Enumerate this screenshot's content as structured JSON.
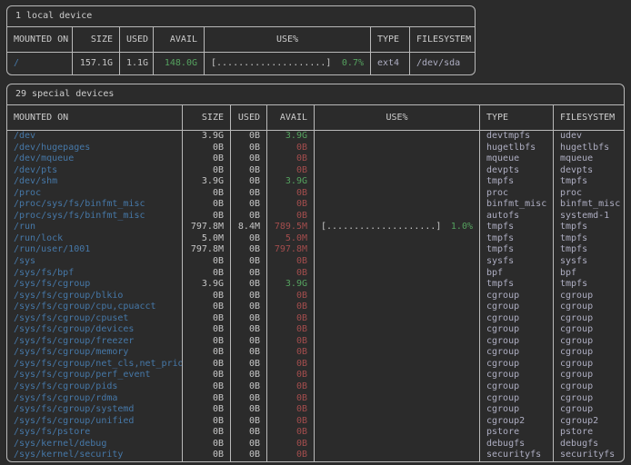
{
  "colors": {
    "background": "#2b2b2b",
    "border": "#b9b9b9",
    "text": "#c6c6c6",
    "mount_blue": "#4678a8",
    "avail_green": "#55a25f",
    "avail_red": "#a34d4d",
    "type_lavender": "#aeaec2"
  },
  "tables": [
    {
      "title": "1 local device",
      "headers": [
        "MOUNTED ON",
        "SIZE",
        "USED",
        "AVAIL",
        "USE%",
        "TYPE",
        "FILESYSTEM"
      ],
      "rows": [
        {
          "mounted_on": "/",
          "size": "157.1G",
          "used": "1.1G",
          "avail": "148.0G",
          "avail_state": "green",
          "use_bar": "[....................]",
          "use_pct": "0.7%",
          "type": "ext4",
          "filesystem": "/dev/sda"
        }
      ]
    },
    {
      "title": "29 special devices",
      "headers": [
        "MOUNTED ON",
        "SIZE",
        "USED",
        "AVAIL",
        "USE%",
        "TYPE",
        "FILESYSTEM"
      ],
      "rows": [
        {
          "mounted_on": "/dev",
          "size": "3.9G",
          "used": "0B",
          "avail": "3.9G",
          "avail_state": "green",
          "use_bar": "",
          "use_pct": "",
          "type": "devtmpfs",
          "filesystem": "udev"
        },
        {
          "mounted_on": "/dev/hugepages",
          "size": "0B",
          "used": "0B",
          "avail": "0B",
          "avail_state": "red",
          "use_bar": "",
          "use_pct": "",
          "type": "hugetlbfs",
          "filesystem": "hugetlbfs"
        },
        {
          "mounted_on": "/dev/mqueue",
          "size": "0B",
          "used": "0B",
          "avail": "0B",
          "avail_state": "red",
          "use_bar": "",
          "use_pct": "",
          "type": "mqueue",
          "filesystem": "mqueue"
        },
        {
          "mounted_on": "/dev/pts",
          "size": "0B",
          "used": "0B",
          "avail": "0B",
          "avail_state": "red",
          "use_bar": "",
          "use_pct": "",
          "type": "devpts",
          "filesystem": "devpts"
        },
        {
          "mounted_on": "/dev/shm",
          "size": "3.9G",
          "used": "0B",
          "avail": "3.9G",
          "avail_state": "green",
          "use_bar": "",
          "use_pct": "",
          "type": "tmpfs",
          "filesystem": "tmpfs"
        },
        {
          "mounted_on": "/proc",
          "size": "0B",
          "used": "0B",
          "avail": "0B",
          "avail_state": "red",
          "use_bar": "",
          "use_pct": "",
          "type": "proc",
          "filesystem": "proc"
        },
        {
          "mounted_on": "/proc/sys/fs/binfmt_misc",
          "size": "0B",
          "used": "0B",
          "avail": "0B",
          "avail_state": "red",
          "use_bar": "",
          "use_pct": "",
          "type": "binfmt_misc",
          "filesystem": "binfmt_misc"
        },
        {
          "mounted_on": "/proc/sys/fs/binfmt_misc",
          "size": "0B",
          "used": "0B",
          "avail": "0B",
          "avail_state": "red",
          "use_bar": "",
          "use_pct": "",
          "type": "autofs",
          "filesystem": "systemd-1"
        },
        {
          "mounted_on": "/run",
          "size": "797.8M",
          "used": "8.4M",
          "avail": "789.5M",
          "avail_state": "red",
          "use_bar": "[....................]",
          "use_pct": "1.0%",
          "type": "tmpfs",
          "filesystem": "tmpfs"
        },
        {
          "mounted_on": "/run/lock",
          "size": "5.0M",
          "used": "0B",
          "avail": "5.0M",
          "avail_state": "red",
          "use_bar": "",
          "use_pct": "",
          "type": "tmpfs",
          "filesystem": "tmpfs"
        },
        {
          "mounted_on": "/run/user/1001",
          "size": "797.8M",
          "used": "0B",
          "avail": "797.8M",
          "avail_state": "red",
          "use_bar": "",
          "use_pct": "",
          "type": "tmpfs",
          "filesystem": "tmpfs"
        },
        {
          "mounted_on": "/sys",
          "size": "0B",
          "used": "0B",
          "avail": "0B",
          "avail_state": "red",
          "use_bar": "",
          "use_pct": "",
          "type": "sysfs",
          "filesystem": "sysfs"
        },
        {
          "mounted_on": "/sys/fs/bpf",
          "size": "0B",
          "used": "0B",
          "avail": "0B",
          "avail_state": "red",
          "use_bar": "",
          "use_pct": "",
          "type": "bpf",
          "filesystem": "bpf"
        },
        {
          "mounted_on": "/sys/fs/cgroup",
          "size": "3.9G",
          "used": "0B",
          "avail": "3.9G",
          "avail_state": "green",
          "use_bar": "",
          "use_pct": "",
          "type": "tmpfs",
          "filesystem": "tmpfs"
        },
        {
          "mounted_on": "/sys/fs/cgroup/blkio",
          "size": "0B",
          "used": "0B",
          "avail": "0B",
          "avail_state": "red",
          "use_bar": "",
          "use_pct": "",
          "type": "cgroup",
          "filesystem": "cgroup"
        },
        {
          "mounted_on": "/sys/fs/cgroup/cpu,cpuacct",
          "size": "0B",
          "used": "0B",
          "avail": "0B",
          "avail_state": "red",
          "use_bar": "",
          "use_pct": "",
          "type": "cgroup",
          "filesystem": "cgroup"
        },
        {
          "mounted_on": "/sys/fs/cgroup/cpuset",
          "size": "0B",
          "used": "0B",
          "avail": "0B",
          "avail_state": "red",
          "use_bar": "",
          "use_pct": "",
          "type": "cgroup",
          "filesystem": "cgroup"
        },
        {
          "mounted_on": "/sys/fs/cgroup/devices",
          "size": "0B",
          "used": "0B",
          "avail": "0B",
          "avail_state": "red",
          "use_bar": "",
          "use_pct": "",
          "type": "cgroup",
          "filesystem": "cgroup"
        },
        {
          "mounted_on": "/sys/fs/cgroup/freezer",
          "size": "0B",
          "used": "0B",
          "avail": "0B",
          "avail_state": "red",
          "use_bar": "",
          "use_pct": "",
          "type": "cgroup",
          "filesystem": "cgroup"
        },
        {
          "mounted_on": "/sys/fs/cgroup/memory",
          "size": "0B",
          "used": "0B",
          "avail": "0B",
          "avail_state": "red",
          "use_bar": "",
          "use_pct": "",
          "type": "cgroup",
          "filesystem": "cgroup"
        },
        {
          "mounted_on": "/sys/fs/cgroup/net_cls,net_prio",
          "size": "0B",
          "used": "0B",
          "avail": "0B",
          "avail_state": "red",
          "use_bar": "",
          "use_pct": "",
          "type": "cgroup",
          "filesystem": "cgroup"
        },
        {
          "mounted_on": "/sys/fs/cgroup/perf_event",
          "size": "0B",
          "used": "0B",
          "avail": "0B",
          "avail_state": "red",
          "use_bar": "",
          "use_pct": "",
          "type": "cgroup",
          "filesystem": "cgroup"
        },
        {
          "mounted_on": "/sys/fs/cgroup/pids",
          "size": "0B",
          "used": "0B",
          "avail": "0B",
          "avail_state": "red",
          "use_bar": "",
          "use_pct": "",
          "type": "cgroup",
          "filesystem": "cgroup"
        },
        {
          "mounted_on": "/sys/fs/cgroup/rdma",
          "size": "0B",
          "used": "0B",
          "avail": "0B",
          "avail_state": "red",
          "use_bar": "",
          "use_pct": "",
          "type": "cgroup",
          "filesystem": "cgroup"
        },
        {
          "mounted_on": "/sys/fs/cgroup/systemd",
          "size": "0B",
          "used": "0B",
          "avail": "0B",
          "avail_state": "red",
          "use_bar": "",
          "use_pct": "",
          "type": "cgroup",
          "filesystem": "cgroup"
        },
        {
          "mounted_on": "/sys/fs/cgroup/unified",
          "size": "0B",
          "used": "0B",
          "avail": "0B",
          "avail_state": "red",
          "use_bar": "",
          "use_pct": "",
          "type": "cgroup2",
          "filesystem": "cgroup2"
        },
        {
          "mounted_on": "/sys/fs/pstore",
          "size": "0B",
          "used": "0B",
          "avail": "0B",
          "avail_state": "red",
          "use_bar": "",
          "use_pct": "",
          "type": "pstore",
          "filesystem": "pstore"
        },
        {
          "mounted_on": "/sys/kernel/debug",
          "size": "0B",
          "used": "0B",
          "avail": "0B",
          "avail_state": "red",
          "use_bar": "",
          "use_pct": "",
          "type": "debugfs",
          "filesystem": "debugfs"
        },
        {
          "mounted_on": "/sys/kernel/security",
          "size": "0B",
          "used": "0B",
          "avail": "0B",
          "avail_state": "red",
          "use_bar": "",
          "use_pct": "",
          "type": "securityfs",
          "filesystem": "securityfs"
        }
      ]
    }
  ]
}
